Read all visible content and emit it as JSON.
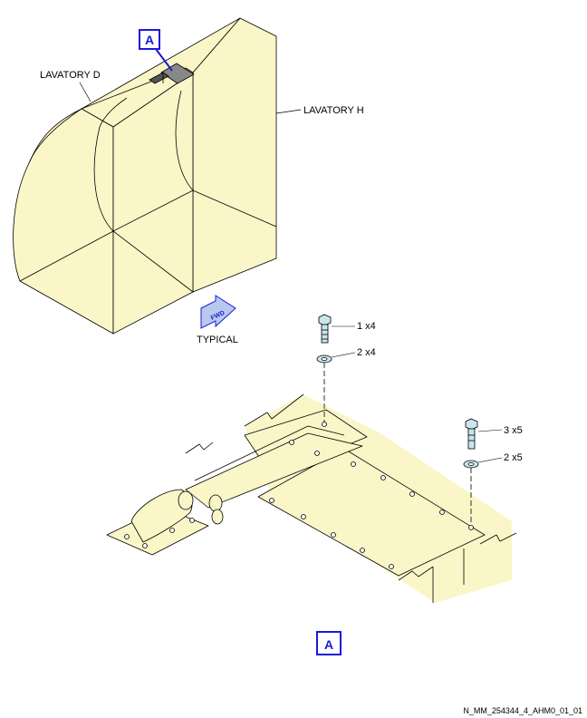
{
  "labels": {
    "lavatory_d": "LAVATORY D",
    "lavatory_h": "LAVATORY H",
    "typical": "TYPICAL",
    "fwd": "FWD",
    "view_callout_top": "A",
    "view_callout_bottom": "A",
    "item_1": "1 x4",
    "item_2a": "2 x4",
    "item_3": "3 x5",
    "item_2b": "2 x5",
    "drawing_ref": "N_MM_254344_4_AHM0_01_01"
  },
  "colors": {
    "fill": "#fbf6c8",
    "line": "#000000",
    "callout": "#1a1ad8",
    "hardware": "#c8e6ec",
    "fwd_arrow": "#b9c9ee"
  }
}
